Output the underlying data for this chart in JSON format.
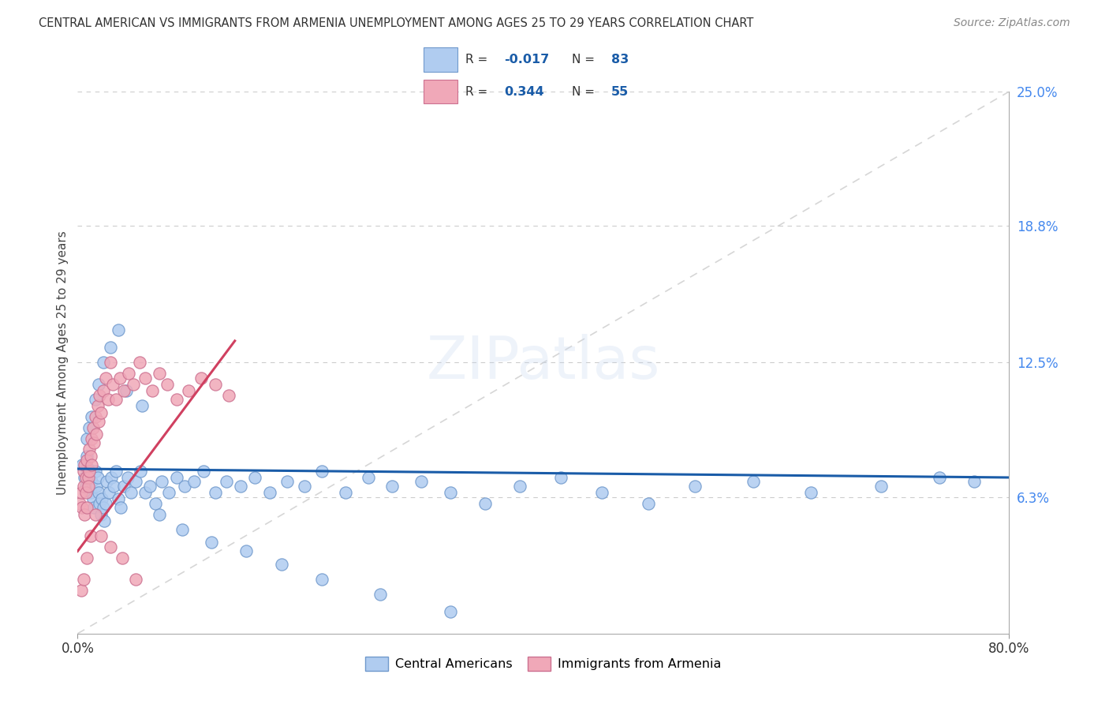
{
  "title": "CENTRAL AMERICAN VS IMMIGRANTS FROM ARMENIA UNEMPLOYMENT AMONG AGES 25 TO 29 YEARS CORRELATION CHART",
  "source": "Source: ZipAtlas.com",
  "ylabel": "Unemployment Among Ages 25 to 29 years",
  "xlim": [
    0.0,
    0.8
  ],
  "ylim": [
    0.0,
    0.25
  ],
  "xtick_labels": [
    "0.0%",
    "80.0%"
  ],
  "xtick_positions": [
    0.0,
    0.8
  ],
  "ytick_right_labels": [
    "25.0%",
    "18.8%",
    "12.5%",
    "6.3%"
  ],
  "ytick_right_positions": [
    0.25,
    0.188,
    0.125,
    0.063
  ],
  "watermark": "ZIPatlas",
  "blue_line_color": "#1a5ca8",
  "pink_line_color": "#d04060",
  "diag_line_color": "#cccccc",
  "grid_color": "#cccccc",
  "background_color": "#ffffff",
  "title_color": "#333333",
  "right_axis_color": "#4488ee",
  "scatter_blue_color": "#b0ccf0",
  "scatter_pink_color": "#f0a8b8",
  "scatter_blue_edge": "#7099cc",
  "scatter_pink_edge": "#cc7090",
  "legend_R1": "-0.017",
  "legend_N1": "83",
  "legend_R2": "0.344",
  "legend_N2": "55",
  "legend_color1": "#b0ccf0",
  "legend_color2": "#f0a8b8",
  "legend_text_color": "#333333",
  "legend_val_color": "#1a5ca8",
  "blue_x": [
    0.004,
    0.006,
    0.007,
    0.008,
    0.009,
    0.01,
    0.011,
    0.012,
    0.013,
    0.014,
    0.015,
    0.016,
    0.017,
    0.018,
    0.019,
    0.02,
    0.021,
    0.022,
    0.023,
    0.024,
    0.025,
    0.027,
    0.029,
    0.031,
    0.033,
    0.035,
    0.037,
    0.04,
    0.043,
    0.046,
    0.05,
    0.054,
    0.058,
    0.062,
    0.067,
    0.072,
    0.078,
    0.085,
    0.092,
    0.1,
    0.108,
    0.118,
    0.128,
    0.14,
    0.152,
    0.165,
    0.18,
    0.195,
    0.21,
    0.23,
    0.25,
    0.27,
    0.295,
    0.32,
    0.35,
    0.38,
    0.415,
    0.45,
    0.49,
    0.53,
    0.58,
    0.63,
    0.69,
    0.74,
    0.77,
    0.008,
    0.01,
    0.012,
    0.015,
    0.018,
    0.022,
    0.028,
    0.035,
    0.042,
    0.055,
    0.07,
    0.09,
    0.115,
    0.145,
    0.175,
    0.21,
    0.26,
    0.32
  ],
  "blue_y": [
    0.078,
    0.072,
    0.068,
    0.082,
    0.076,
    0.068,
    0.065,
    0.07,
    0.062,
    0.058,
    0.075,
    0.068,
    0.072,
    0.065,
    0.06,
    0.055,
    0.062,
    0.058,
    0.052,
    0.06,
    0.07,
    0.065,
    0.072,
    0.068,
    0.075,
    0.062,
    0.058,
    0.068,
    0.072,
    0.065,
    0.07,
    0.075,
    0.065,
    0.068,
    0.06,
    0.07,
    0.065,
    0.072,
    0.068,
    0.07,
    0.075,
    0.065,
    0.07,
    0.068,
    0.072,
    0.065,
    0.07,
    0.068,
    0.075,
    0.065,
    0.072,
    0.068,
    0.07,
    0.065,
    0.06,
    0.068,
    0.072,
    0.065,
    0.06,
    0.068,
    0.07,
    0.065,
    0.068,
    0.072,
    0.07,
    0.09,
    0.095,
    0.1,
    0.108,
    0.115,
    0.125,
    0.132,
    0.14,
    0.112,
    0.105,
    0.055,
    0.048,
    0.042,
    0.038,
    0.032,
    0.025,
    0.018,
    0.01
  ],
  "pink_x": [
    0.002,
    0.003,
    0.004,
    0.005,
    0.005,
    0.006,
    0.006,
    0.007,
    0.007,
    0.008,
    0.008,
    0.009,
    0.009,
    0.01,
    0.01,
    0.011,
    0.012,
    0.012,
    0.013,
    0.014,
    0.015,
    0.016,
    0.017,
    0.018,
    0.019,
    0.02,
    0.022,
    0.024,
    0.026,
    0.028,
    0.03,
    0.033,
    0.036,
    0.04,
    0.044,
    0.048,
    0.053,
    0.058,
    0.064,
    0.07,
    0.077,
    0.085,
    0.095,
    0.106,
    0.118,
    0.13,
    0.003,
    0.005,
    0.008,
    0.011,
    0.015,
    0.02,
    0.028,
    0.038,
    0.05
  ],
  "pink_y": [
    0.06,
    0.065,
    0.058,
    0.075,
    0.068,
    0.078,
    0.055,
    0.072,
    0.065,
    0.08,
    0.058,
    0.072,
    0.068,
    0.085,
    0.075,
    0.082,
    0.09,
    0.078,
    0.095,
    0.088,
    0.1,
    0.092,
    0.105,
    0.098,
    0.11,
    0.102,
    0.112,
    0.118,
    0.108,
    0.125,
    0.115,
    0.108,
    0.118,
    0.112,
    0.12,
    0.115,
    0.125,
    0.118,
    0.112,
    0.12,
    0.115,
    0.108,
    0.112,
    0.118,
    0.115,
    0.11,
    0.02,
    0.025,
    0.035,
    0.045,
    0.055,
    0.045,
    0.04,
    0.035,
    0.025
  ]
}
